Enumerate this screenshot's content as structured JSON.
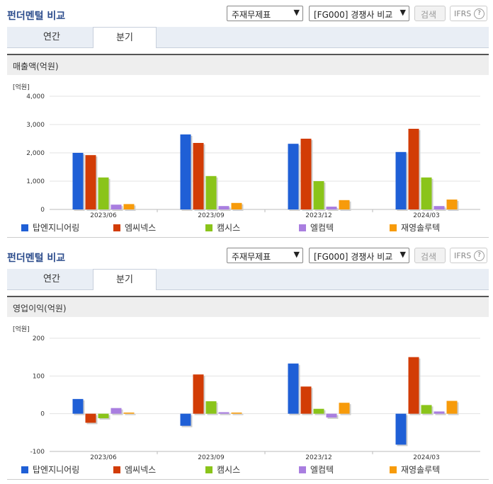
{
  "legend": [
    {
      "name": "탑엔지니어링",
      "color": "#1f5fd6"
    },
    {
      "name": "엠씨넥스",
      "color": "#d23c06"
    },
    {
      "name": "캠시스",
      "color": "#8ac41a"
    },
    {
      "name": "엘컴텍",
      "color": "#a97ee0"
    },
    {
      "name": "재영솔루텍",
      "color": "#f79b0b"
    }
  ],
  "sections": [
    {
      "title": "펀더멘털 비교",
      "select1": "주재무제표",
      "select2": "[FG000] 경쟁사 비교",
      "search_label": "검색",
      "ifrs_label": "IFRS",
      "ifrs_help": "?",
      "tabs": [
        "연간",
        "분기"
      ],
      "active_tab": 1,
      "subtitle": "매출액(억원)"
    },
    {
      "title": "펀더멘털 비교",
      "select1": "주재무제표",
      "select2": "[FG000] 경쟁사 비교",
      "search_label": "검색",
      "ifrs_label": "IFRS",
      "ifrs_help": "?",
      "tabs": [
        "연간",
        "분기"
      ],
      "active_tab": 1,
      "subtitle": "영업이익(억원)"
    }
  ],
  "chart_data": [
    {
      "type": "bar",
      "ylabel": "[억원]",
      "categories": [
        "2023/06",
        "2023/09",
        "2023/12",
        "2024/03"
      ],
      "ylim": [
        0,
        4000
      ],
      "yticks": [
        0,
        1000,
        2000,
        3000,
        4000
      ],
      "ytick_labels": [
        "0",
        "1,000",
        "2,000",
        "3,000",
        "4,000"
      ],
      "series": [
        {
          "name": "탑엔지니어링",
          "values": [
            2000,
            2650,
            2320,
            2030
          ]
        },
        {
          "name": "엠씨넥스",
          "values": [
            1920,
            2350,
            2500,
            2850
          ]
        },
        {
          "name": "캠시스",
          "values": [
            1130,
            1180,
            1000,
            1130
          ]
        },
        {
          "name": "엘컴텍",
          "values": [
            170,
            120,
            100,
            120
          ]
        },
        {
          "name": "재영솔루텍",
          "values": [
            190,
            230,
            330,
            350
          ]
        }
      ]
    },
    {
      "type": "bar",
      "ylabel": "[억원]",
      "categories": [
        "2023/06",
        "2023/09",
        "2023/12",
        "2024/03"
      ],
      "ylim": [
        -100,
        200
      ],
      "yticks": [
        -100,
        0,
        100,
        200
      ],
      "ytick_labels": [
        "-100",
        "0",
        "100",
        "200"
      ],
      "series": [
        {
          "name": "탑엔지니어링",
          "values": [
            39,
            -32,
            133,
            -82
          ]
        },
        {
          "name": "엠씨넥스",
          "values": [
            -24,
            104,
            72,
            150
          ]
        },
        {
          "name": "캠시스",
          "values": [
            -12,
            33,
            13,
            23
          ]
        },
        {
          "name": "엘컴텍",
          "values": [
            15,
            4,
            -10,
            6
          ]
        },
        {
          "name": "재영솔루텍",
          "values": [
            3,
            3,
            29,
            34
          ]
        }
      ]
    }
  ]
}
